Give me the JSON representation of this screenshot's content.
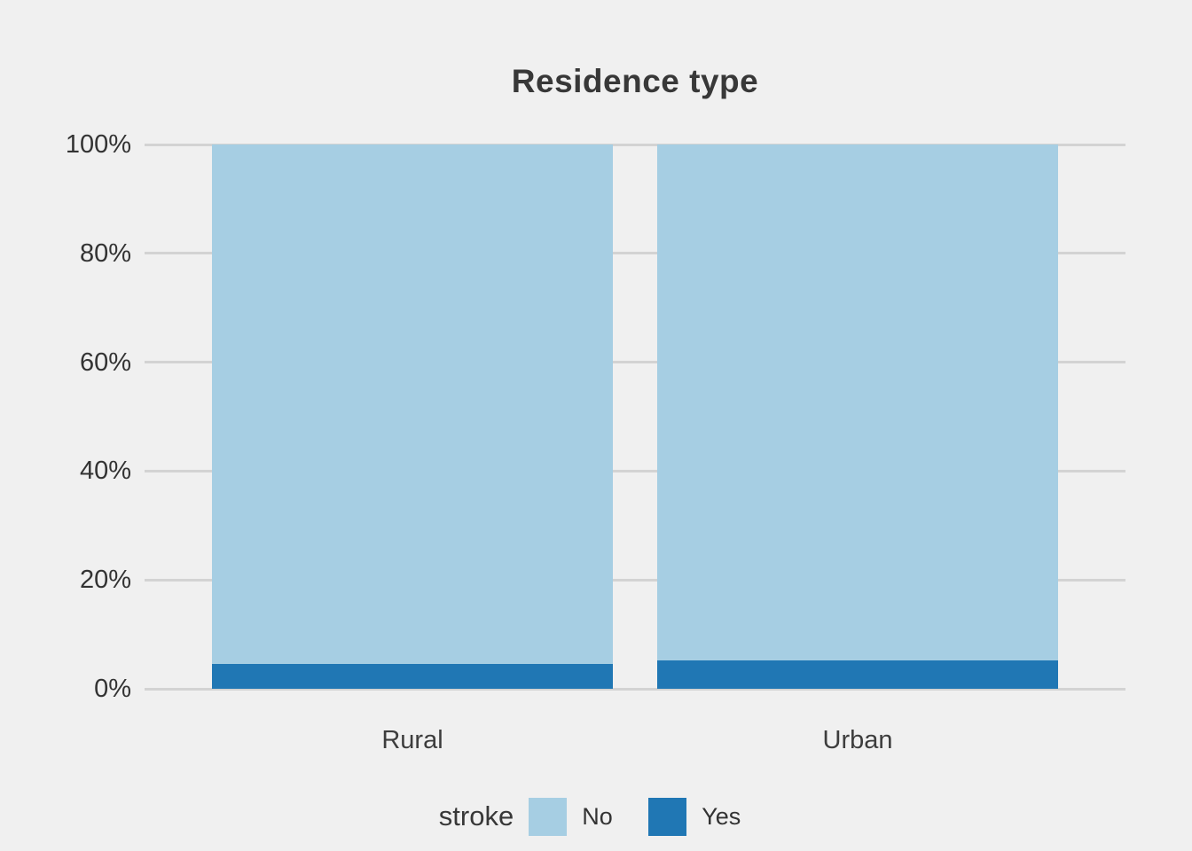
{
  "chart_data": {
    "type": "bar",
    "subtype": "stacked-percent",
    "title": "Residence type",
    "xlabel": "",
    "ylabel": "",
    "categories": [
      "Rural",
      "Urban"
    ],
    "series": [
      {
        "name": "No",
        "color": "#a6cee3",
        "values": [
          95.5,
          94.8
        ]
      },
      {
        "name": "Yes",
        "color": "#2077b4",
        "values": [
          4.5,
          5.2
        ]
      }
    ],
    "ylim": [
      0,
      100
    ],
    "yticks": [
      {
        "value": 0,
        "label": "0%"
      },
      {
        "value": 20,
        "label": "20%"
      },
      {
        "value": 40,
        "label": "40%"
      },
      {
        "value": 60,
        "label": "60%"
      },
      {
        "value": 80,
        "label": "80%"
      },
      {
        "value": 100,
        "label": "100%"
      }
    ],
    "grid": "horizontal",
    "legend_position": "bottom"
  },
  "legend": {
    "title": "stroke",
    "items": [
      {
        "label": "No",
        "color": "#a6cee3"
      },
      {
        "label": "Yes",
        "color": "#2077b4"
      }
    ]
  },
  "colors": {
    "background": "#f0f0f0",
    "gridline": "#d3d3d3",
    "title_text": "#383838",
    "axis_text": "#333333"
  }
}
